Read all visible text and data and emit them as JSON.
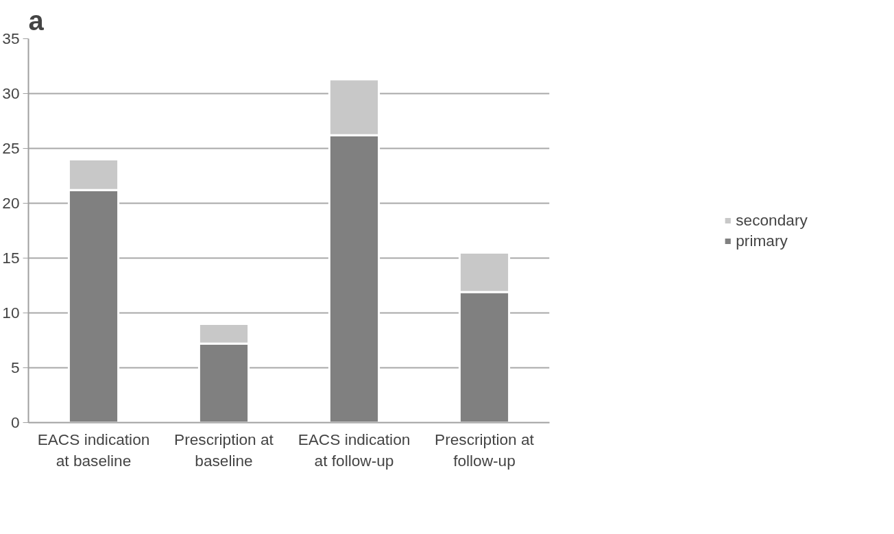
{
  "chart_data": {
    "type": "bar",
    "title": "a",
    "stacked": true,
    "categories": [
      "EACS indication at baseline",
      "Prescription at baseline",
      "EACS indication at follow-up",
      "Prescription at follow-up"
    ],
    "series": [
      {
        "name": "primary",
        "color": "#808080",
        "values": [
          21.2,
          7.2,
          26.2,
          11.9
        ]
      },
      {
        "name": "secondary",
        "color": "#c8c8c8",
        "values": [
          2.8,
          1.8,
          5.1,
          3.6
        ]
      }
    ],
    "ylim": [
      0,
      35
    ],
    "yticks": [
      0,
      5,
      10,
      15,
      20,
      25,
      30,
      35
    ],
    "grid": "y",
    "legend": "right"
  }
}
